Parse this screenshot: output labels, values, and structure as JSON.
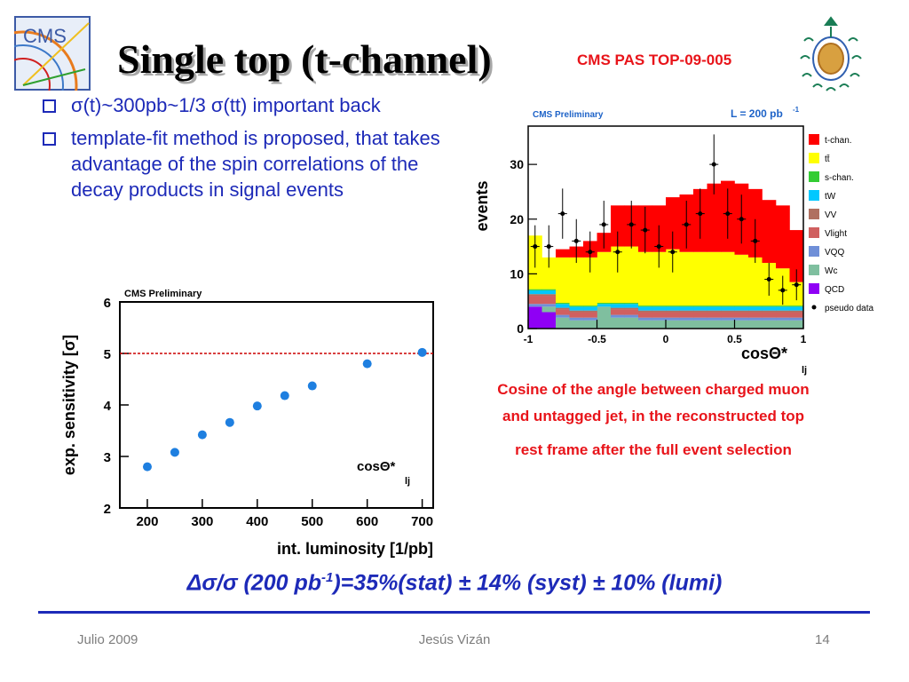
{
  "slide": {
    "title": "Single top (t-channel)",
    "reference": "CMS PAS TOP-09-005",
    "bullets": [
      "σ(t)~300pb~1/3 σ(tt)  important back",
      "template-fit method is proposed, that takes advantage of the spin correlations of the decay products in signal events"
    ],
    "caption_lines": [
      "Cosine of the angle between charged muon",
      "and untagged jet, in the reconstructed top",
      "rest frame after the full event selection"
    ],
    "formula_prefix": "Δσ/σ (200 pb",
    "formula_sup": "-1",
    "formula_suffix": ")=35%(stat) ± 14% (syst) ± 10% (lumi)",
    "footer_left": "Julio 2009",
    "footer_center": "Jesús Vizán",
    "footer_right": "14",
    "colors": {
      "bullet_text": "#1d2ab8",
      "accent_red": "#e8141a",
      "rule": "#1d2ab8"
    },
    "logo_left_text": "CMS",
    "logo_right": "university-crest"
  },
  "chart_data": [
    {
      "type": "scatter",
      "label": "CMS Preliminary",
      "xlabel": "int. luminosity [1/pb]",
      "ylabel": "exp. sensitivity [σ]",
      "annotation": "cosΘ*",
      "annotation_sub": "lj",
      "x_ticks": [
        "200",
        "300",
        "400",
        "500",
        "600",
        "700"
      ],
      "y_ticks": [
        "2",
        "3",
        "4",
        "5",
        "6"
      ],
      "xlim": [
        150,
        720
      ],
      "ylim": [
        2,
        6
      ],
      "reference_line": 5,
      "reference_line_color": "#cc0000",
      "marker_color": "#1e7fe0",
      "points": [
        {
          "x": 200,
          "y": 2.8
        },
        {
          "x": 250,
          "y": 3.08
        },
        {
          "x": 300,
          "y": 3.42
        },
        {
          "x": 350,
          "y": 3.66
        },
        {
          "x": 400,
          "y": 3.98
        },
        {
          "x": 450,
          "y": 4.18
        },
        {
          "x": 500,
          "y": 4.37
        },
        {
          "x": 600,
          "y": 4.8
        },
        {
          "x": 700,
          "y": 5.02
        }
      ]
    },
    {
      "type": "bar",
      "stacked": true,
      "label": "CMS Preliminary",
      "lumi_label": "L = 200 pb",
      "lumi_sup": "-1",
      "ylabel": "events",
      "xlabel": "cosΘ*",
      "xlabel_sub": "lj",
      "x_ticks": [
        "-1",
        "-0.5",
        "0",
        "0.5",
        "1"
      ],
      "y_ticks": [
        "0",
        "10",
        "20",
        "30"
      ],
      "xlim": [
        -1,
        1
      ],
      "ylim": [
        0,
        37
      ],
      "bin_edges": [
        -1.0,
        -0.9,
        -0.8,
        -0.7,
        -0.6,
        -0.5,
        -0.4,
        -0.3,
        -0.2,
        -0.1,
        0.0,
        0.1,
        0.2,
        0.3,
        0.4,
        0.5,
        0.6,
        0.7,
        0.8,
        0.9,
        1.0
      ],
      "series": [
        {
          "name": "QCD",
          "color": "#8f00f5",
          "values": [
            4,
            3,
            0,
            0,
            0,
            0,
            0,
            0,
            0,
            0,
            0,
            0,
            0,
            0,
            0,
            0,
            0,
            0,
            0,
            0
          ]
        },
        {
          "name": "Wc",
          "color": "#7fbf9f",
          "values": [
            0,
            1,
            2,
            1.5,
            1.5,
            4,
            2,
            2,
            1.5,
            1.5,
            1.5,
            1.5,
            1.5,
            1.5,
            1.5,
            1.5,
            1.5,
            1.5,
            1.5,
            1.5
          ]
        },
        {
          "name": "VQQ",
          "color": "#6f8fd8",
          "values": [
            0.5,
            0.5,
            0.5,
            0.5,
            0.5,
            0,
            0.5,
            0.5,
            0.5,
            0.5,
            0.5,
            0.5,
            0.5,
            0.5,
            0.5,
            0.5,
            0.5,
            0.5,
            0.5,
            0.5
          ]
        },
        {
          "name": "Vlight",
          "color": "#d06060",
          "values": [
            1.5,
            1.5,
            1,
            1,
            1,
            0,
            1,
            1,
            1,
            1,
            1,
            1,
            1,
            1,
            1,
            1,
            1,
            1,
            1,
            1
          ]
        },
        {
          "name": "VV",
          "color": "#b07060",
          "values": [
            0.3,
            0.3,
            0.3,
            0.3,
            0.3,
            0,
            0.3,
            0.3,
            0.3,
            0.3,
            0.3,
            0.3,
            0.3,
            0.3,
            0.3,
            0.3,
            0.3,
            0.3,
            0.3,
            0.3
          ]
        },
        {
          "name": "tW",
          "color": "#00c8ff",
          "values": [
            0.7,
            0.7,
            0.7,
            0.7,
            0.7,
            0.5,
            0.7,
            0.7,
            0.7,
            0.7,
            0.7,
            0.7,
            0.7,
            0.7,
            0.7,
            0.7,
            0.7,
            0.7,
            0.7,
            0.7
          ]
        },
        {
          "name": "s-chan.",
          "color": "#33cc33",
          "values": [
            0.2,
            0.2,
            0.2,
            0.2,
            0.2,
            0.2,
            0.2,
            0.2,
            0.2,
            0.2,
            0.2,
            0.2,
            0.2,
            0.2,
            0.2,
            0.2,
            0.2,
            0.2,
            0.2,
            0.2
          ]
        },
        {
          "name": "tt̄",
          "color": "#ffff00",
          "values": [
            9.8,
            5.8,
            8.3,
            8.8,
            8.8,
            9.3,
            10.3,
            10.3,
            9.8,
            9.8,
            10.3,
            9.8,
            9.8,
            9.8,
            9.8,
            9.3,
            8.8,
            7.8,
            6.8,
            4.3
          ]
        },
        {
          "name": "t-chan.",
          "color": "#ff0000",
          "values": [
            0,
            0,
            1.5,
            2,
            3,
            3.5,
            7.5,
            7.5,
            8.5,
            8.5,
            9.5,
            10.5,
            11.5,
            12.5,
            13,
            13,
            12.5,
            11.5,
            11.5,
            9.5
          ]
        }
      ],
      "pseudo_data": {
        "name": "pseudo data",
        "x": [
          -0.95,
          -0.85,
          -0.75,
          -0.65,
          -0.55,
          -0.45,
          -0.35,
          -0.25,
          -0.15,
          -0.05,
          0.05,
          0.15,
          0.25,
          0.35,
          0.45,
          0.55,
          0.65,
          0.75,
          0.85,
          0.95
        ],
        "y": [
          15,
          15,
          21,
          16,
          14,
          19,
          14,
          19,
          18,
          15,
          14,
          19,
          21,
          30,
          21,
          20,
          16,
          9,
          7,
          8
        ]
      }
    }
  ]
}
